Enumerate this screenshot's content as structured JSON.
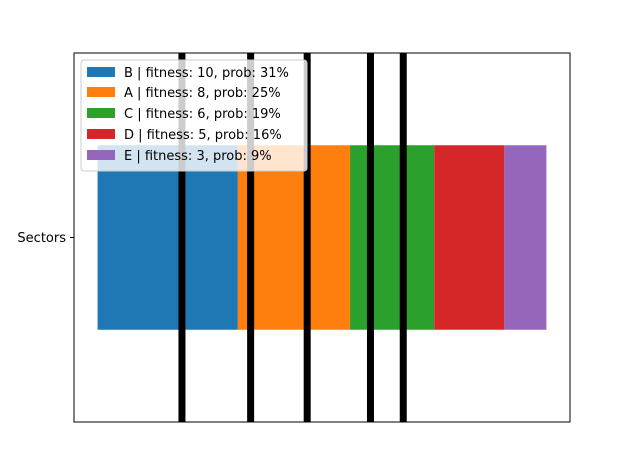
{
  "chart_data": {
    "type": "bar",
    "orientation": "horizontal-stacked",
    "category": "Sectors",
    "series": [
      {
        "name": "B | fitness: 10, prob: 31%",
        "fitness": 10,
        "value": 0.3125,
        "color": "#1f77b4"
      },
      {
        "name": "A | fitness: 8, prob: 25%",
        "fitness": 8,
        "value": 0.25,
        "color": "#ff7f0e"
      },
      {
        "name": "C | fitness: 6, prob: 19%",
        "fitness": 6,
        "value": 0.1875,
        "color": "#2ca02c"
      },
      {
        "name": "D | fitness: 5, prob: 16%",
        "fitness": 5,
        "value": 0.15625,
        "color": "#d62728"
      },
      {
        "name": "E | fitness: 3, prob: 9%",
        "fitness": 3,
        "value": 0.09375,
        "color": "#9467bd"
      }
    ],
    "markers": [
      0.188,
      0.341,
      0.467,
      0.608,
      0.681
    ],
    "marker_color": "#000000",
    "xlim": [
      -0.0525,
      1.0525
    ],
    "ylim": [
      -1,
      1
    ],
    "yticks": [
      "Sectors"
    ],
    "xticks_visible": false,
    "grid": false,
    "legend_placement": "upper-left"
  }
}
